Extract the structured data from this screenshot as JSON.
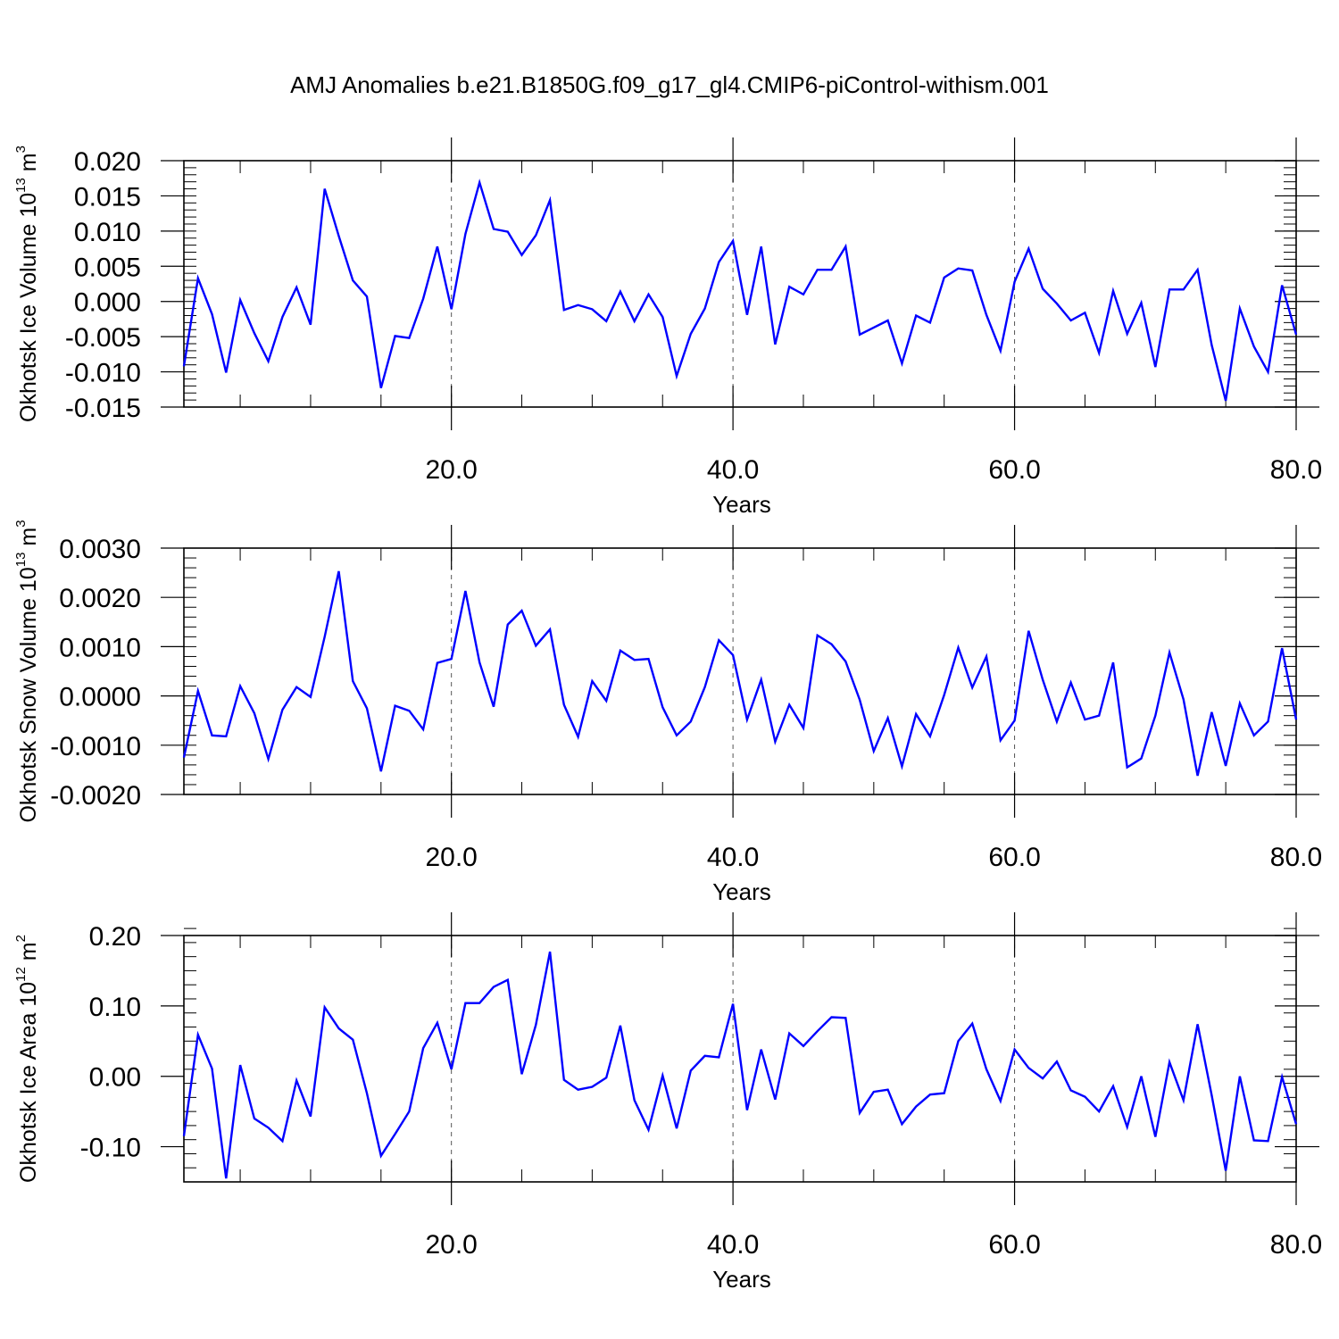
{
  "title": "AMJ Anomalies b.e21.B1850G.f09_g17_gl4.CMIP6-piControl-withism.001",
  "colors": {
    "line": "#0000ff",
    "axis": "#000000",
    "grid": "#555555"
  },
  "chart_data": [
    {
      "type": "line",
      "xlabel": "Years",
      "ylabel": {
        "text": "Okhotsk Ice Volume 10",
        "exp": "13",
        "unit": " m",
        "unit_exp": "3"
      },
      "xlim": [
        1,
        80
      ],
      "ylim": [
        -0.015,
        0.02
      ],
      "xticks": [
        20,
        40,
        60,
        80
      ],
      "xtick_labels": [
        "20.0",
        "40.0",
        "60.0",
        "80.0"
      ],
      "yticks": [
        -0.015,
        -0.01,
        -0.005,
        0.0,
        0.005,
        0.01,
        0.015,
        0.02
      ],
      "ytick_labels": [
        "-0.015",
        "-0.010",
        "-0.005",
        "0.000",
        "0.005",
        "0.010",
        "0.015",
        "0.020"
      ],
      "y_minor_step": 0.001,
      "grid": "vertical dashed at major x ticks",
      "series": [
        {
          "x_start": 1,
          "values": [
            -0.0092,
            0.0033,
            -0.0018,
            -0.0101,
            0.0002,
            -0.0045,
            -0.0085,
            -0.0022,
            0.002,
            -0.0033,
            0.016,
            0.0093,
            0.003,
            0.0007,
            -0.0123,
            -0.0049,
            -0.0052,
            0.0004,
            0.0078,
            -0.0011,
            0.0096,
            0.0169,
            0.0103,
            0.0099,
            0.0066,
            0.0094,
            0.0144,
            -0.0012,
            -0.0005,
            -0.0011,
            -0.0028,
            0.0014,
            -0.0028,
            0.001,
            -0.0022,
            -0.0106,
            -0.0046,
            -0.001,
            0.0056,
            0.0086,
            -0.0019,
            0.0078,
            -0.0061,
            0.0021,
            0.001,
            0.0045,
            0.0045,
            0.0078,
            -0.0047,
            -0.0037,
            -0.0027,
            -0.0088,
            -0.002,
            -0.003,
            0.0034,
            0.0047,
            0.0044,
            -0.0019,
            -0.007,
            0.0028,
            0.0075,
            0.0018,
            -0.0003,
            -0.0027,
            -0.0016,
            -0.0073,
            0.0015,
            -0.0046,
            -0.0002,
            -0.0093,
            0.0017,
            0.0017,
            0.0045,
            -0.0062,
            -0.0141,
            -0.001,
            -0.0064,
            -0.01,
            0.0023,
            -0.0047
          ]
        }
      ]
    },
    {
      "type": "line",
      "xlabel": "Years",
      "ylabel": {
        "text": "Okhotsk Snow Volume 10",
        "exp": "13",
        "unit": " m",
        "unit_exp": "3"
      },
      "xlim": [
        1,
        80
      ],
      "ylim": [
        -0.002,
        0.003
      ],
      "xticks": [
        20,
        40,
        60,
        80
      ],
      "xtick_labels": [
        "20.0",
        "40.0",
        "60.0",
        "80.0"
      ],
      "yticks": [
        -0.002,
        -0.001,
        0.0,
        0.001,
        0.002,
        0.003
      ],
      "ytick_labels": [
        "-0.0020",
        "-0.0010",
        "0.0000",
        "0.0010",
        "0.0020",
        "0.0030"
      ],
      "y_minor_step": 0.0002,
      "grid": "vertical dashed at major x ticks",
      "series": [
        {
          "x_start": 1,
          "values": [
            -0.00125,
            0.0001,
            -0.0008,
            -0.00082,
            0.0002,
            -0.00035,
            -0.00128,
            -0.00028,
            0.00018,
            -2e-05,
            0.0012,
            0.00253,
            0.0003,
            -0.00025,
            -0.00153,
            -0.0002,
            -0.0003,
            -0.00068,
            0.00067,
            0.00075,
            0.00213,
            0.00068,
            -0.00022,
            0.00145,
            0.00173,
            0.00102,
            0.00135,
            -0.00018,
            -0.00083,
            0.0003,
            -0.0001,
            0.00092,
            0.00073,
            0.00075,
            -0.00023,
            -0.0008,
            -0.00052,
            0.00018,
            0.00113,
            0.00083,
            -0.00048,
            0.00033,
            -0.00093,
            -0.00018,
            -0.00065,
            0.00123,
            0.00105,
            0.0007,
            -8e-05,
            -0.00112,
            -0.00045,
            -0.00143,
            -0.00037,
            -0.00082,
            2e-05,
            0.00098,
            0.00017,
            0.0008,
            -0.0009,
            -0.0005,
            0.00132,
            0.00033,
            -0.00052,
            0.00027,
            -0.00048,
            -0.0004,
            0.00068,
            -0.00145,
            -0.00127,
            -0.0004,
            0.00088,
            -7e-05,
            -0.00162,
            -0.00033,
            -0.00142,
            -0.00015,
            -0.0008,
            -0.00052,
            0.00097,
            -0.00048
          ]
        }
      ]
    },
    {
      "type": "line",
      "xlabel": "Years",
      "ylabel": {
        "text": "Okhotsk Ice Area 10",
        "exp": "12",
        "unit": " m",
        "unit_exp": "2"
      },
      "xlim": [
        1,
        80
      ],
      "ylim": [
        -0.15,
        0.2
      ],
      "xticks": [
        20,
        40,
        60,
        80
      ],
      "xtick_labels": [
        "20.0",
        "40.0",
        "60.0",
        "80.0"
      ],
      "yticks": [
        -0.1,
        0.0,
        0.1,
        0.2
      ],
      "ytick_labels": [
        "-0.10",
        "0.00",
        "0.10",
        "0.20"
      ],
      "y_minor_step": 0.02,
      "grid": "vertical dashed at major x ticks",
      "series": [
        {
          "x_start": 1,
          "values": [
            -0.085,
            0.059,
            0.011,
            -0.145,
            0.016,
            -0.06,
            -0.073,
            -0.092,
            -0.006,
            -0.057,
            0.098,
            0.068,
            0.052,
            -0.024,
            -0.113,
            -0.082,
            -0.05,
            0.04,
            0.076,
            0.01,
            0.104,
            0.104,
            0.127,
            0.137,
            0.003,
            0.073,
            0.177,
            -0.005,
            -0.019,
            -0.015,
            -0.002,
            0.072,
            -0.034,
            -0.076,
            0.001,
            -0.074,
            0.008,
            0.029,
            0.027,
            0.103,
            -0.048,
            0.038,
            -0.033,
            0.061,
            0.043,
            0.064,
            0.084,
            0.083,
            -0.052,
            -0.022,
            -0.019,
            -0.068,
            -0.043,
            -0.026,
            -0.024,
            0.05,
            0.075,
            0.01,
            -0.035,
            0.038,
            0.012,
            -0.003,
            0.021,
            -0.02,
            -0.029,
            -0.05,
            -0.014,
            -0.072,
            0.0,
            -0.086,
            0.02,
            -0.034,
            0.074,
            -0.027,
            -0.134,
            0.0,
            -0.091,
            -0.092,
            -0.001,
            -0.068
          ]
        }
      ]
    }
  ]
}
